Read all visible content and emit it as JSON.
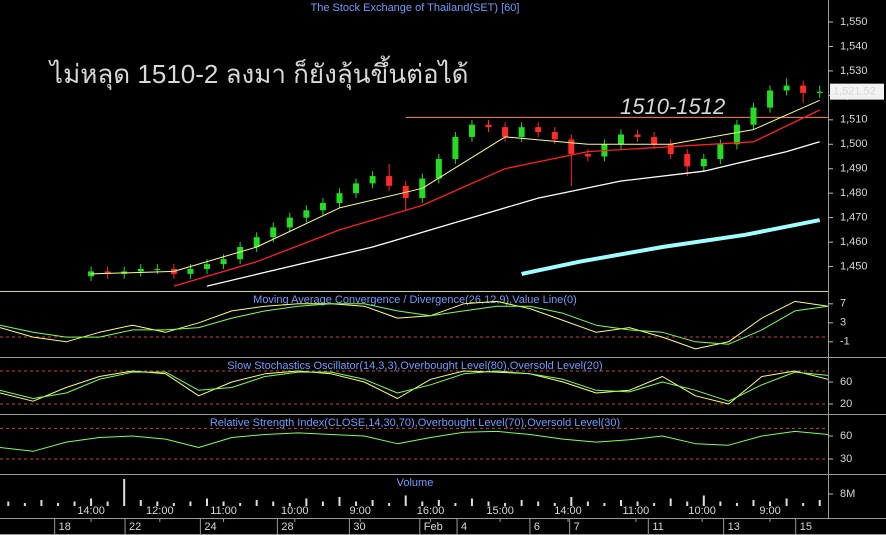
{
  "chart_data": [
    {
      "type": "candlestick",
      "title": "The Stock Exchange of Thailand(SET) [60]",
      "annotation": "ไม่หลุด 1510-2 ลงมา ก็ยังลุ้นขึ้นต่อได้",
      "annotation_color": "#ff8c32",
      "reference_line": {
        "value": 1511,
        "x": [
          49,
          100
        ],
        "label": "1510-1512",
        "color": "#ff8c32"
      },
      "last_price": {
        "value": 1521.52,
        "label": "1,521.52"
      },
      "xlim": [
        0,
        100
      ],
      "ylim": [
        1440,
        1559
      ],
      "yticks": [
        {
          "value": 1450,
          "label": "1,450"
        },
        {
          "value": 1460,
          "label": "1,460"
        },
        {
          "value": 1470,
          "label": "1,470"
        },
        {
          "value": 1480,
          "label": "1,480"
        },
        {
          "value": 1490,
          "label": "1,490"
        },
        {
          "value": 1500,
          "label": "1,500"
        },
        {
          "value": 1510,
          "label": "1,510"
        },
        {
          "value": 1520,
          "label": "1,520"
        },
        {
          "value": 1530,
          "label": "1,530"
        },
        {
          "value": 1540,
          "label": "1,540"
        },
        {
          "value": 1550,
          "label": "1,550"
        }
      ],
      "up_color": "#22dd22",
      "down_color": "#ff2a2a",
      "x": [
        11,
        13,
        15,
        17,
        19,
        21,
        23,
        25,
        27,
        29,
        31,
        33,
        35,
        37,
        39,
        41,
        43,
        45,
        47,
        49,
        51,
        53,
        55,
        57,
        59,
        61,
        63,
        65,
        67,
        69,
        71,
        73,
        75,
        77,
        79,
        81,
        83,
        85,
        87,
        89,
        91,
        93,
        95,
        97,
        99
      ],
      "open": [
        1446,
        1448,
        1447,
        1448,
        1449,
        1449,
        1447,
        1449,
        1451,
        1453,
        1458,
        1462,
        1466,
        1470,
        1473,
        1476,
        1480,
        1484,
        1487,
        1483,
        1478,
        1486,
        1494,
        1503,
        1508,
        1507,
        1503,
        1507,
        1505,
        1502,
        1496,
        1495,
        1500,
        1504,
        1503,
        1500,
        1496,
        1491,
        1494,
        1500,
        1508,
        1515,
        1522,
        1524,
        1521
      ],
      "high": [
        1450,
        1450,
        1450,
        1451,
        1451,
        1451,
        1451,
        1453,
        1455,
        1460,
        1464,
        1468,
        1472,
        1475,
        1478,
        1482,
        1486,
        1489,
        1492,
        1485,
        1488,
        1496,
        1505,
        1510,
        1510,
        1509,
        1509,
        1509,
        1507,
        1504,
        1498,
        1502,
        1506,
        1506,
        1505,
        1502,
        1498,
        1496,
        1502,
        1510,
        1517,
        1524,
        1527,
        1526,
        1524
      ],
      "low": [
        1444,
        1445,
        1445,
        1446,
        1447,
        1445,
        1445,
        1447,
        1449,
        1451,
        1456,
        1460,
        1464,
        1468,
        1471,
        1474,
        1478,
        1482,
        1481,
        1473,
        1476,
        1484,
        1492,
        1501,
        1505,
        1501,
        1501,
        1503,
        1500,
        1483,
        1493,
        1493,
        1498,
        1501,
        1498,
        1494,
        1487,
        1489,
        1492,
        1498,
        1506,
        1513,
        1520,
        1517,
        1519
      ],
      "close": [
        1448,
        1447,
        1448,
        1449,
        1449,
        1447,
        1449,
        1451,
        1453,
        1458,
        1462,
        1466,
        1470,
        1473,
        1476,
        1480,
        1484,
        1487,
        1483,
        1478,
        1486,
        1494,
        1503,
        1508,
        1507,
        1503,
        1507,
        1505,
        1502,
        1496,
        1495,
        1500,
        1504,
        1503,
        1500,
        1496,
        1491,
        1494,
        1500,
        1508,
        1515,
        1522,
        1524,
        1521,
        1521.52
      ],
      "series": [
        {
          "color": "#a0ffff",
          "width": 4,
          "x": [
            63,
            70,
            80,
            90,
            99
          ],
          "values": [
            1447,
            1452,
            1458,
            1463,
            1469
          ]
        },
        {
          "color": "#ffffff",
          "width": 1.3,
          "x": [
            25,
            35,
            45,
            55,
            65,
            75,
            85,
            95,
            99
          ],
          "values": [
            1442,
            1450,
            1458,
            1468,
            1478,
            1485,
            1489,
            1497,
            1501
          ]
        },
        {
          "color": "#ff2020",
          "width": 1.3,
          "x": [
            21,
            31,
            41,
            51,
            61,
            71,
            81,
            91,
            99
          ],
          "values": [
            1442,
            1452,
            1465,
            1475,
            1490,
            1497,
            1499,
            1501,
            1514
          ]
        },
        {
          "color": "#ffff80",
          "width": 1,
          "x": [
            11,
            21,
            31,
            41,
            51,
            61,
            71,
            81,
            91,
            99
          ],
          "values": [
            1447,
            1448,
            1458,
            1474,
            1482,
            1503,
            1500,
            1500,
            1506,
            1518
          ]
        }
      ]
    },
    {
      "type": "line",
      "title": "Moving Average Convergence / Divergence(26,12,9),Value Line(0)",
      "xlim": [
        0,
        100
      ],
      "ylim": [
        -4.2,
        9.7
      ],
      "yticks": [
        7,
        3,
        -1
      ],
      "reference_lines": [
        0
      ],
      "series": [
        {
          "color": "#ffff66",
          "width": 1,
          "x": [
            0,
            4,
            8,
            12,
            16,
            20,
            24,
            28,
            32,
            36,
            40,
            44,
            48,
            52,
            56,
            60,
            64,
            68,
            72,
            76,
            80,
            84,
            88,
            92,
            96,
            100
          ],
          "values": [
            2,
            0,
            -1,
            1,
            2.5,
            1,
            3,
            5.5,
            6.5,
            7,
            7,
            6.5,
            4,
            4.5,
            7,
            7.5,
            6,
            3.5,
            1,
            2,
            0,
            -2.5,
            -1,
            4,
            7.5,
            6.5
          ]
        },
        {
          "color": "#7dff5a",
          "width": 1,
          "x": [
            0,
            4,
            8,
            12,
            16,
            20,
            24,
            28,
            32,
            36,
            40,
            44,
            48,
            52,
            56,
            60,
            64,
            68,
            72,
            76,
            80,
            84,
            88,
            92,
            96,
            100
          ],
          "values": [
            2.5,
            1,
            0,
            0,
            1.5,
            1.5,
            2,
            4,
            5.5,
            6.5,
            7,
            7,
            5.5,
            4.5,
            5.5,
            6.5,
            6.5,
            5,
            2.5,
            1.5,
            1,
            -1,
            -1.5,
            1.5,
            5.5,
            6.5
          ]
        }
      ]
    },
    {
      "type": "line",
      "title": "Slow Stochastics Oscillator(14,3,3),Overbought Level(80),Oversold Level(20)",
      "xlim": [
        0,
        100
      ],
      "ylim": [
        1.8,
        105.5
      ],
      "yticks": [
        60,
        20
      ],
      "reference_lines": [
        80,
        20
      ],
      "series": [
        {
          "color": "#ffff66",
          "width": 1,
          "x": [
            0,
            4,
            8,
            12,
            16,
            20,
            24,
            28,
            32,
            36,
            40,
            44,
            48,
            52,
            56,
            60,
            64,
            68,
            72,
            76,
            80,
            84,
            88,
            92,
            96,
            100
          ],
          "values": [
            40,
            25,
            50,
            70,
            80,
            75,
            35,
            60,
            75,
            80,
            75,
            60,
            30,
            65,
            80,
            78,
            75,
            60,
            40,
            45,
            70,
            35,
            20,
            70,
            80,
            65
          ]
        },
        {
          "color": "#7dff5a",
          "width": 1,
          "x": [
            0,
            4,
            8,
            12,
            16,
            20,
            24,
            28,
            32,
            36,
            40,
            44,
            48,
            52,
            56,
            60,
            64,
            68,
            72,
            76,
            80,
            84,
            88,
            92,
            96,
            100
          ],
          "values": [
            45,
            30,
            40,
            65,
            78,
            78,
            45,
            50,
            70,
            78,
            78,
            65,
            40,
            55,
            75,
            80,
            75,
            65,
            45,
            42,
            60,
            45,
            25,
            55,
            78,
            72
          ]
        }
      ]
    },
    {
      "type": "line",
      "title": "Relative Strength Index(CLOSE,14,30,70),Overbought Level(70),Oversold Level(30)",
      "xlim": [
        0,
        100
      ],
      "ylim": [
        10.4,
        88.7
      ],
      "yticks": [
        60,
        30
      ],
      "reference_lines": [
        70,
        30
      ],
      "series": [
        {
          "color": "#7dff5a",
          "width": 1,
          "x": [
            0,
            4,
            8,
            12,
            16,
            20,
            24,
            28,
            32,
            36,
            40,
            44,
            48,
            52,
            56,
            60,
            64,
            68,
            72,
            76,
            80,
            84,
            88,
            92,
            96,
            100
          ],
          "values": [
            45,
            40,
            52,
            58,
            60,
            56,
            45,
            58,
            62,
            64,
            62,
            60,
            50,
            58,
            65,
            66,
            62,
            56,
            52,
            55,
            60,
            50,
            48,
            60,
            66,
            62
          ]
        }
      ]
    },
    {
      "type": "bar",
      "title": "Volume",
      "color": "#dddddd",
      "xlim": [
        0,
        100
      ],
      "ylim": [
        0,
        21.3
      ],
      "yticks": [
        {
          "value": 8,
          "label": "8M"
        }
      ],
      "x": [
        1,
        3,
        5,
        7,
        9,
        11,
        13,
        15,
        17,
        19,
        21,
        23,
        25,
        27,
        29,
        31,
        33,
        35,
        37,
        39,
        41,
        43,
        45,
        47,
        49,
        51,
        53,
        55,
        57,
        59,
        61,
        63,
        65,
        67,
        69,
        71,
        73,
        75,
        77,
        79,
        81,
        83,
        85,
        87,
        89,
        91,
        93,
        95,
        97,
        99
      ],
      "values": [
        3,
        2,
        4,
        2,
        3,
        5,
        3,
        18,
        4,
        3,
        2,
        3,
        5,
        3,
        2,
        4,
        3,
        2,
        5,
        3,
        6,
        3,
        4,
        2,
        7,
        3,
        4,
        2,
        5,
        3,
        2,
        4,
        3,
        2,
        6,
        3,
        2,
        4,
        3,
        2,
        5,
        3,
        7,
        3,
        2,
        4,
        3,
        5,
        2,
        4
      ],
      "xticks": [
        {
          "value": 11,
          "label": "14:00"
        },
        {
          "value": 19.3,
          "label": "12:00"
        },
        {
          "value": 27,
          "label": "11:00"
        },
        {
          "value": 35.6,
          "label": "10:00"
        },
        {
          "value": 43.5,
          "label": "9:00"
        },
        {
          "value": 52,
          "label": "16:00"
        },
        {
          "value": 60.4,
          "label": "15:00"
        },
        {
          "value": 68.6,
          "label": "14:00"
        },
        {
          "value": 76.8,
          "label": "11:00"
        },
        {
          "value": 84.8,
          "label": "10:00"
        },
        {
          "value": 93,
          "label": "9:00"
        }
      ],
      "date_ticks": [
        {
          "value": 6.6,
          "label": "18"
        },
        {
          "value": 15.1,
          "label": "22"
        },
        {
          "value": 24.2,
          "label": "24"
        },
        {
          "value": 33.5,
          "label": "28"
        },
        {
          "value": 42.2,
          "label": "30"
        },
        {
          "value": 50.7,
          "label": "Feb"
        },
        {
          "value": 55.2,
          "label": "4"
        },
        {
          "value": 64,
          "label": "6"
        },
        {
          "value": 68.8,
          "label": "7"
        },
        {
          "value": 78.3,
          "label": "11"
        },
        {
          "value": 87.4,
          "label": "13"
        },
        {
          "value": 96.1,
          "label": "15"
        }
      ]
    }
  ]
}
